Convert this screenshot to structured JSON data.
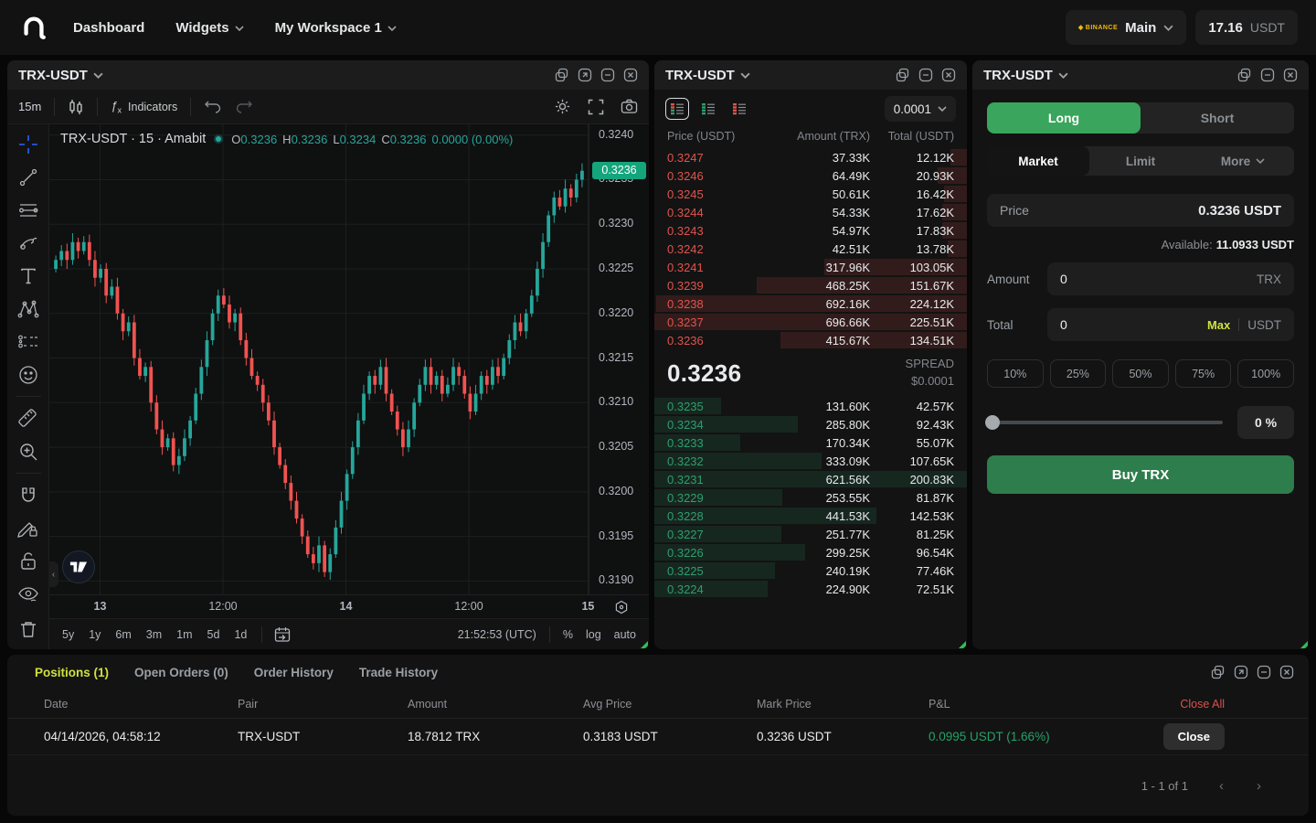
{
  "navbar": {
    "items": [
      {
        "label": "Dashboard",
        "chevron": false
      },
      {
        "label": "Widgets",
        "chevron": true
      },
      {
        "label": "My Workspace 1",
        "chevron": true
      }
    ],
    "account": {
      "exchange": "BINANCE",
      "name": "Main"
    },
    "balance": {
      "amount": "17.16",
      "currency": "USDT"
    }
  },
  "chart_panel": {
    "title": "TRX-USDT",
    "toolbar": {
      "interval": "15m",
      "indicators_label": "Indicators"
    },
    "legend": {
      "series": "TRX-USDT · 15 · Amabit",
      "o_label": "O",
      "o": "0.3236",
      "h_label": "H",
      "h": "0.3236",
      "l_label": "L",
      "l": "0.3234",
      "c_label": "C",
      "c": "0.3236",
      "change": "0.0000 (0.00%)"
    },
    "price_axis": {
      "ticks": [
        "0.3240",
        "0.3235",
        "0.3230",
        "0.3225",
        "0.3220",
        "0.3215",
        "0.3210",
        "0.3205",
        "0.3200",
        "0.3195",
        "0.3190"
      ],
      "last_price": "0.3236"
    },
    "time_axis": {
      "labels": [
        "13",
        "12:00",
        "14",
        "12:00",
        "15"
      ],
      "major": [
        true,
        false,
        true,
        false,
        true
      ]
    },
    "bottom_bar": {
      "ranges": [
        "5y",
        "1y",
        "6m",
        "3m",
        "1m",
        "5d",
        "1d"
      ],
      "clock": "21:52:53 (UTC)",
      "scale_buttons": [
        "%",
        "log",
        "auto"
      ]
    }
  },
  "chart_data": {
    "type": "candlestick",
    "symbol": "TRX-USDT",
    "interval": "15m",
    "ylim": [
      0.3189,
      0.3241
    ],
    "closes": [
      0.3226,
      0.3227,
      0.3226,
      0.3228,
      0.3227,
      0.3228,
      0.3226,
      0.3224,
      0.3225,
      0.3222,
      0.3223,
      0.322,
      0.3218,
      0.3219,
      0.3215,
      0.3213,
      0.3214,
      0.321,
      0.3207,
      0.3205,
      0.3206,
      0.3203,
      0.3204,
      0.3206,
      0.3208,
      0.3211,
      0.3214,
      0.3217,
      0.322,
      0.3222,
      0.3221,
      0.3219,
      0.322,
      0.3217,
      0.3215,
      0.3213,
      0.3212,
      0.321,
      0.3208,
      0.3205,
      0.3203,
      0.3201,
      0.3199,
      0.3197,
      0.3195,
      0.3193,
      0.3192,
      0.3194,
      0.3191,
      0.3193,
      0.3196,
      0.3199,
      0.3202,
      0.3205,
      0.3208,
      0.3211,
      0.3213,
      0.3212,
      0.3214,
      0.3211,
      0.3209,
      0.3207,
      0.3205,
      0.3207,
      0.321,
      0.3212,
      0.3214,
      0.3212,
      0.3213,
      0.3211,
      0.3212,
      0.3214,
      0.3213,
      0.3211,
      0.3209,
      0.3211,
      0.3213,
      0.3212,
      0.3214,
      0.3213,
      0.3215,
      0.3217,
      0.3219,
      0.3218,
      0.322,
      0.3222,
      0.3225,
      0.3228,
      0.3231,
      0.3233,
      0.3232,
      0.3234,
      0.3233,
      0.3235,
      0.3236
    ]
  },
  "orderbook": {
    "title": "TRX-USDT",
    "precision": "0.0001",
    "columns": [
      "Price (USDT)",
      "Amount (TRX)",
      "Total (USDT)"
    ],
    "asks": [
      [
        "0.3247",
        "37.33K",
        "12.12K"
      ],
      [
        "0.3246",
        "64.49K",
        "20.93K"
      ],
      [
        "0.3245",
        "50.61K",
        "16.42K"
      ],
      [
        "0.3244",
        "54.33K",
        "17.62K"
      ],
      [
        "0.3243",
        "54.97K",
        "17.83K"
      ],
      [
        "0.3242",
        "42.51K",
        "13.78K"
      ],
      [
        "0.3241",
        "317.96K",
        "103.05K"
      ],
      [
        "0.3239",
        "468.25K",
        "151.67K"
      ],
      [
        "0.3238",
        "692.16K",
        "224.12K"
      ],
      [
        "0.3237",
        "696.66K",
        "225.51K"
      ],
      [
        "0.3236",
        "415.67K",
        "134.51K"
      ]
    ],
    "bids": [
      [
        "0.3235",
        "131.60K",
        "42.57K"
      ],
      [
        "0.3234",
        "285.80K",
        "92.43K"
      ],
      [
        "0.3233",
        "170.34K",
        "55.07K"
      ],
      [
        "0.3232",
        "333.09K",
        "107.65K"
      ],
      [
        "0.3231",
        "621.56K",
        "200.83K"
      ],
      [
        "0.3229",
        "253.55K",
        "81.87K"
      ],
      [
        "0.3228",
        "441.53K",
        "142.53K"
      ],
      [
        "0.3227",
        "251.77K",
        "81.25K"
      ],
      [
        "0.3226",
        "299.25K",
        "96.54K"
      ],
      [
        "0.3225",
        "240.19K",
        "77.46K"
      ],
      [
        "0.3224",
        "224.90K",
        "72.51K"
      ]
    ],
    "mid": {
      "price": "0.3236",
      "spread_label": "SPREAD",
      "spread_value": "$0.0001"
    }
  },
  "trade": {
    "title": "TRX-USDT",
    "side_tabs": [
      "Long",
      "Short"
    ],
    "order_types": [
      "Market",
      "Limit"
    ],
    "more_label": "More",
    "price_label": "Price",
    "price_value": "0.3236 USDT",
    "available_label": "Available:",
    "available_value": "11.0933 USDT",
    "amount_label": "Amount",
    "amount_value": "0",
    "amount_unit": "TRX",
    "total_label": "Total",
    "total_value": "0",
    "max_label": "Max",
    "total_unit": "USDT",
    "percent_options": [
      "10%",
      "25%",
      "50%",
      "75%",
      "100%"
    ],
    "slider_value": "0 %",
    "submit_label": "Buy TRX"
  },
  "positions": {
    "tabs": [
      {
        "label": "Positions (1)",
        "active": true
      },
      {
        "label": "Open Orders (0)",
        "active": false
      },
      {
        "label": "Order History",
        "active": false
      },
      {
        "label": "Trade History",
        "active": false
      }
    ],
    "columns": [
      "Date",
      "Pair",
      "Amount",
      "Avg Price",
      "Mark Price",
      "P&L",
      "Close All"
    ],
    "rows": [
      {
        "date": "04/14/2026, 04:58:12",
        "pair": "TRX-USDT",
        "amount": "18.7812 TRX",
        "avg_price": "0.3183 USDT",
        "mark_price": "0.3236 USDT",
        "pnl": "0.0995 USDT (1.66%)",
        "close_label": "Close"
      }
    ],
    "pagination": {
      "label": "1 - 1 of 1"
    }
  },
  "colors": {
    "accent_green": "#3aa55c",
    "buy_green": "#2e7d4c",
    "candle_green": "#26a69a",
    "candle_red": "#ef5350",
    "ask_red": "#e0534e",
    "bid_green": "#2f9e6e",
    "lime": "#cfe23e",
    "tag_green": "#14a57d",
    "pnl_green": "#26a269",
    "close_all_red": "#d9524e",
    "binance_yellow": "#f0b90b",
    "crosshair_blue": "#2962ff"
  },
  "icons": [
    "app-logo",
    "chevron-down",
    "duplicate",
    "expand",
    "minimize",
    "close",
    "candles",
    "fx-indicators",
    "undo",
    "redo",
    "settings-gear",
    "fullscreen",
    "camera",
    "crosshair",
    "trend-line",
    "parallel-lines",
    "brush",
    "text-tool",
    "xabcd-pattern",
    "forecast",
    "emoji",
    "ruler",
    "zoom-in",
    "magnet",
    "draw-lock",
    "lock-open",
    "eye-hide",
    "trash",
    "calendar-range",
    "axis-settings-hex",
    "tv-logo",
    "ob-view-combined",
    "ob-view-bids",
    "ob-view-asks",
    "slider-thumb",
    "page-prev",
    "page-next"
  ]
}
